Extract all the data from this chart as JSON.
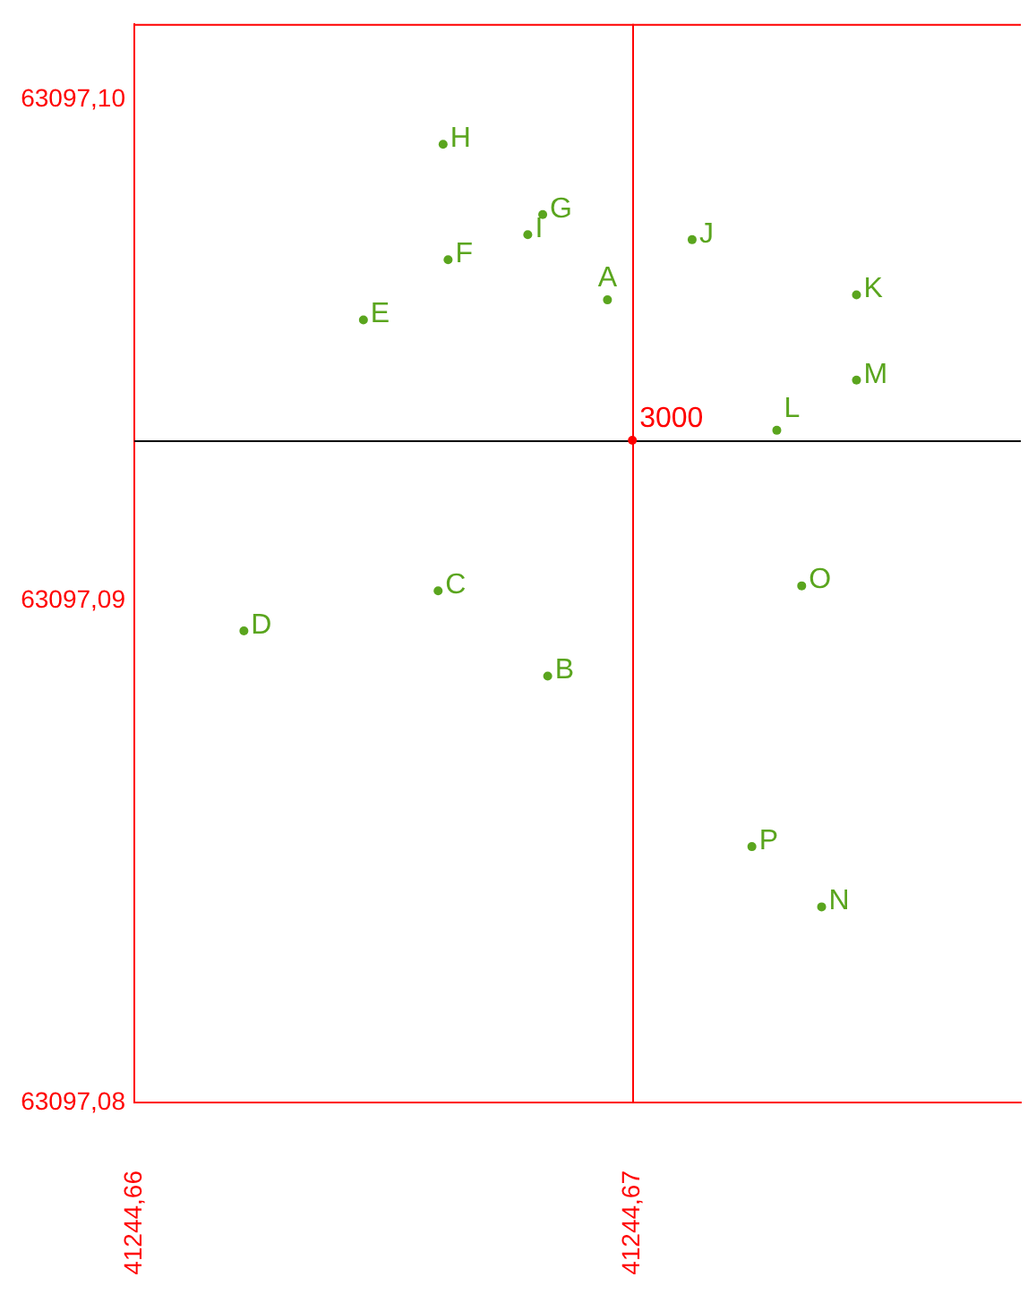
{
  "chart_data": {
    "type": "scatter",
    "xlim": [
      41244.66,
      41244.6778
    ],
    "ylim": [
      63097.08,
      63097.1015
    ],
    "xticks": [
      {
        "value": 41244.66,
        "label": "41244,66"
      },
      {
        "value": 41244.67,
        "label": "41244,67"
      }
    ],
    "yticks": [
      {
        "value": 63097.08,
        "label": "63097,08"
      },
      {
        "value": 63097.09,
        "label": "63097,09"
      },
      {
        "value": 63097.1,
        "label": "63097,10"
      }
    ],
    "grid": false,
    "legend": false,
    "marker": "circle",
    "series": [
      {
        "color": "#5aa51e",
        "x": [
          41244.6662,
          41244.6682,
          41244.6679,
          41244.6663,
          41244.6646,
          41244.6695,
          41244.6712,
          41244.6745,
          41244.6745,
          41244.6729,
          41244.6661,
          41244.6622,
          41244.6734,
          41244.6683,
          41244.6724,
          41244.6738
        ],
        "values": [
          63097.0991,
          63097.0977,
          63097.0973,
          63097.0968,
          63097.0956,
          63097.096,
          63097.0972,
          63097.0961,
          63097.0944,
          63097.0934,
          63097.0902,
          63097.0894,
          63097.0903,
          63097.0885,
          63097.0851,
          63097.0839
        ]
      },
      {
        "color": "#ff0000",
        "x": [
          41244.67
        ],
        "values": [
          63097.0932
        ]
      }
    ],
    "annotations": [
      {
        "text": "H",
        "x": 41244.6662,
        "y": 63097.0991
      },
      {
        "text": "G",
        "x": 41244.6682,
        "y": 63097.0977
      },
      {
        "text": "I",
        "x": 41244.6679,
        "y": 63097.0973
      },
      {
        "text": "F",
        "x": 41244.6663,
        "y": 63097.0968
      },
      {
        "text": "E",
        "x": 41244.6646,
        "y": 63097.0956
      },
      {
        "text": "A",
        "x": 41244.6695,
        "y": 63097.096
      },
      {
        "text": "J",
        "x": 41244.6712,
        "y": 63097.0972
      },
      {
        "text": "K",
        "x": 41244.6745,
        "y": 63097.0961
      },
      {
        "text": "M",
        "x": 41244.6745,
        "y": 63097.0944
      },
      {
        "text": "L",
        "x": 41244.6729,
        "y": 63097.0934
      },
      {
        "text": "C",
        "x": 41244.6661,
        "y": 63097.0902
      },
      {
        "text": "D",
        "x": 41244.6622,
        "y": 63097.0894
      },
      {
        "text": "O",
        "x": 41244.6734,
        "y": 63097.0903
      },
      {
        "text": "B",
        "x": 41244.6683,
        "y": 63097.0885
      },
      {
        "text": "P",
        "x": 41244.6724,
        "y": 63097.0851
      },
      {
        "text": "N",
        "x": 41244.6738,
        "y": 63097.0839
      },
      {
        "text": "3000",
        "x": 41244.67,
        "y": 63097.0932
      }
    ],
    "ref_lines": [
      {
        "axis": "x",
        "value": 41244.67,
        "color": "#ff0000"
      },
      {
        "axis": "y",
        "value": 63097.0932,
        "color": "#000000"
      }
    ]
  }
}
